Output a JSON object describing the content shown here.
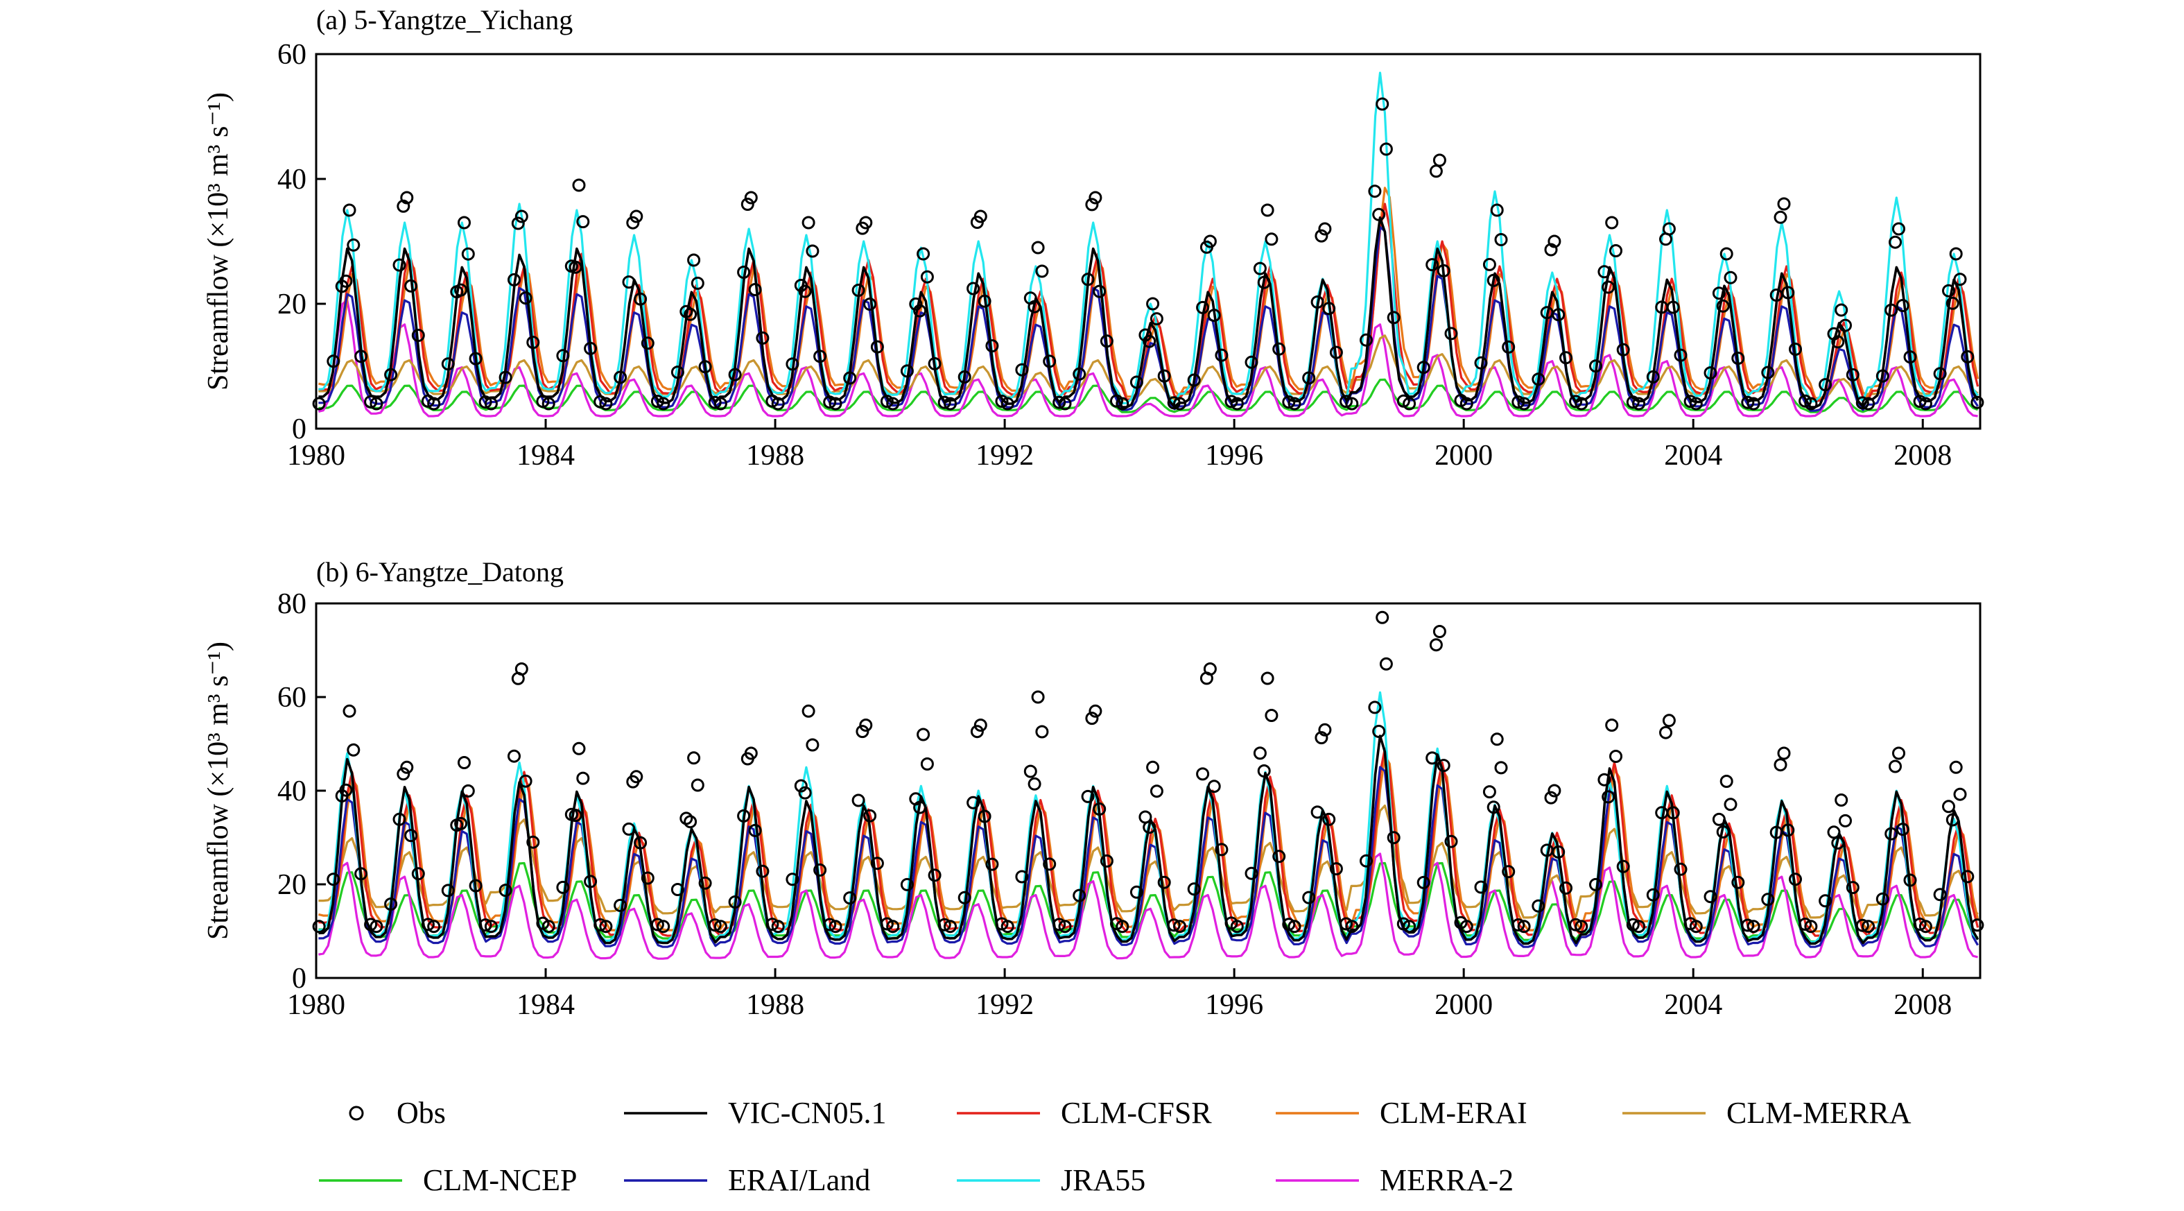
{
  "chart_data": [
    {
      "type": "line",
      "title": "(a) 5-Yangtze_Yichang",
      "ylabel": "Streamflow (×10³ m³ s⁻¹)",
      "xlim": [
        1980,
        2009
      ],
      "ylim": [
        0,
        60
      ],
      "xticks": [
        1980,
        1984,
        1988,
        1992,
        1996,
        2000,
        2004,
        2008
      ],
      "yticks": [
        0,
        20,
        40,
        60
      ],
      "grid": false,
      "peaks": {
        "years": [
          1980,
          1981,
          1982,
          1983,
          1984,
          1985,
          1986,
          1987,
          1988,
          1989,
          1990,
          1991,
          1992,
          1993,
          1994,
          1995,
          1996,
          1997,
          1998,
          1999,
          2000,
          2001,
          2002,
          2003,
          2004,
          2005,
          2006,
          2007,
          2008
        ],
        "Obs": [
          35,
          37,
          33,
          34,
          39,
          34,
          27,
          37,
          33,
          33,
          28,
          34,
          29,
          37,
          20,
          30,
          35,
          32,
          52,
          43,
          35,
          30,
          33,
          32,
          28,
          36,
          19,
          32,
          28
        ],
        "VIC-CN05.1": [
          29,
          29,
          26,
          28,
          29,
          24,
          22,
          29,
          26,
          26,
          22,
          25,
          21,
          29,
          17,
          22,
          25,
          24,
          34,
          29,
          25,
          22,
          26,
          24,
          23,
          25,
          17,
          26,
          24
        ],
        "CLM-CFSR": [
          26,
          28,
          25,
          26,
          28,
          23,
          23,
          27,
          25,
          27,
          24,
          24,
          22,
          28,
          18,
          24,
          26,
          23,
          36,
          30,
          26,
          24,
          25,
          24,
          23,
          26,
          17,
          25,
          24
        ],
        "CLM-ERAI": [
          25,
          27,
          24,
          26,
          27,
          23,
          22,
          26,
          24,
          25,
          23,
          23,
          21,
          27,
          17,
          23,
          25,
          22,
          39,
          30,
          25,
          23,
          24,
          23,
          22,
          25,
          16,
          24,
          23
        ],
        "CLM-MERRA": [
          11,
          11,
          10,
          11,
          11,
          10,
          10,
          11,
          10,
          11,
          10,
          10,
          9,
          11,
          8,
          10,
          10,
          10,
          15,
          12,
          11,
          10,
          11,
          10,
          10,
          11,
          8,
          10,
          10
        ],
        "CLM-NCEP": [
          7,
          7,
          6,
          7,
          7,
          6,
          6,
          7,
          6,
          6,
          6,
          6,
          6,
          7,
          5,
          6,
          6,
          6,
          8,
          7,
          6,
          6,
          6,
          6,
          6,
          6,
          5,
          6,
          6
        ],
        "ERAI/Land": [
          22,
          21,
          19,
          23,
          22,
          19,
          17,
          22,
          20,
          21,
          19,
          20,
          17,
          23,
          14,
          18,
          20,
          19,
          33,
          25,
          21,
          19,
          20,
          19,
          18,
          20,
          13,
          20,
          17
        ],
        "JRA55": [
          35,
          33,
          33,
          36,
          35,
          31,
          27,
          32,
          31,
          30,
          29,
          30,
          26,
          33,
          20,
          30,
          30,
          24,
          57,
          30,
          38,
          25,
          31,
          35,
          28,
          33,
          22,
          37,
          28
        ],
        "MERRA-2": [
          21,
          17,
          10,
          10,
          9,
          8,
          7,
          9,
          10,
          9,
          9,
          8,
          8,
          9,
          4,
          7,
          10,
          8,
          17,
          12,
          10,
          11,
          12,
          11,
          10,
          10,
          8,
          10,
          8
        ]
      }
    },
    {
      "type": "line",
      "title": "(b) 6-Yangtze_Datong",
      "ylabel": "Streamflow (×10³ m³ s⁻¹)",
      "xlim": [
        1980,
        2009
      ],
      "ylim": [
        0,
        80
      ],
      "xticks": [
        1980,
        1984,
        1988,
        1992,
        1996,
        2000,
        2004,
        2008
      ],
      "yticks": [
        0,
        20,
        40,
        60,
        80
      ],
      "grid": false,
      "peaks": {
        "years": [
          1980,
          1981,
          1982,
          1983,
          1984,
          1985,
          1986,
          1987,
          1988,
          1989,
          1990,
          1991,
          1992,
          1993,
          1994,
          1995,
          1996,
          1997,
          1998,
          1999,
          2000,
          2001,
          2002,
          2003,
          2004,
          2005,
          2006,
          2007,
          2008
        ],
        "Obs": [
          57,
          45,
          46,
          66,
          49,
          43,
          47,
          48,
          57,
          54,
          52,
          54,
          60,
          57,
          45,
          66,
          64,
          53,
          77,
          74,
          51,
          40,
          54,
          55,
          42,
          48,
          38,
          48,
          45
        ],
        "VIC-CN05.1": [
          47,
          41,
          40,
          42,
          40,
          32,
          32,
          41,
          38,
          37,
          39,
          39,
          38,
          41,
          34,
          41,
          44,
          36,
          52,
          48,
          37,
          31,
          45,
          40,
          34,
          38,
          31,
          40,
          36
        ],
        "CLM-CFSR": [
          44,
          39,
          39,
          44,
          38,
          31,
          30,
          38,
          37,
          36,
          37,
          38,
          38,
          40,
          34,
          40,
          43,
          35,
          49,
          46,
          36,
          31,
          46,
          39,
          33,
          36,
          30,
          38,
          33
        ],
        "CLM-ERAI": [
          43,
          38,
          38,
          43,
          37,
          30,
          30,
          37,
          36,
          35,
          36,
          37,
          37,
          39,
          33,
          39,
          42,
          34,
          48,
          45,
          35,
          30,
          45,
          38,
          32,
          35,
          29,
          37,
          32
        ],
        "CLM-MERRA": [
          30,
          27,
          28,
          34,
          30,
          25,
          24,
          27,
          27,
          26,
          26,
          26,
          27,
          28,
          25,
          28,
          29,
          25,
          37,
          29,
          27,
          22,
          32,
          27,
          24,
          26,
          22,
          28,
          23
        ],
        "CLM-NCEP": [
          23,
          18,
          19,
          25,
          21,
          18,
          17,
          19,
          19,
          19,
          19,
          19,
          20,
          23,
          18,
          22,
          23,
          19,
          25,
          25,
          19,
          16,
          21,
          18,
          17,
          19,
          15,
          18,
          17
        ],
        "ERAI/Land": [
          39,
          34,
          32,
          39,
          34,
          27,
          26,
          33,
          32,
          31,
          34,
          33,
          31,
          35,
          29,
          35,
          36,
          30,
          46,
          42,
          30,
          26,
          41,
          34,
          28,
          32,
          26,
          33,
          27
        ],
        "JRA55": [
          48,
          40,
          40,
          46,
          39,
          33,
          32,
          41,
          45,
          38,
          41,
          40,
          39,
          41,
          34,
          41,
          44,
          36,
          61,
          49,
          37,
          31,
          42,
          41,
          33,
          38,
          31,
          40,
          34
        ],
        "MERRA-2": [
          25,
          22,
          18,
          20,
          17,
          15,
          14,
          16,
          19,
          17,
          18,
          16,
          18,
          21,
          15,
          18,
          20,
          18,
          27,
          25,
          19,
          21,
          24,
          20,
          18,
          22,
          18,
          20,
          18
        ]
      }
    }
  ],
  "legend": {
    "placement": "bottom",
    "entries": [
      {
        "name": "Obs",
        "color": "#000000",
        "marker": "circle"
      },
      {
        "name": "VIC-CN05.1",
        "color": "#000000",
        "marker": "line"
      },
      {
        "name": "CLM-CFSR",
        "color": "#e3221b",
        "marker": "line"
      },
      {
        "name": "CLM-ERAI",
        "color": "#e87a1a",
        "marker": "line"
      },
      {
        "name": "CLM-MERRA",
        "color": "#c89530",
        "marker": "line"
      },
      {
        "name": "CLM-NCEP",
        "color": "#22cc22",
        "marker": "line"
      },
      {
        "name": "ERAI/Land",
        "color": "#1a1aaa",
        "marker": "line"
      },
      {
        "name": "JRA55",
        "color": "#22e6ee",
        "marker": "line"
      },
      {
        "name": "MERRA-2",
        "color": "#e020e0",
        "marker": "line"
      }
    ]
  }
}
